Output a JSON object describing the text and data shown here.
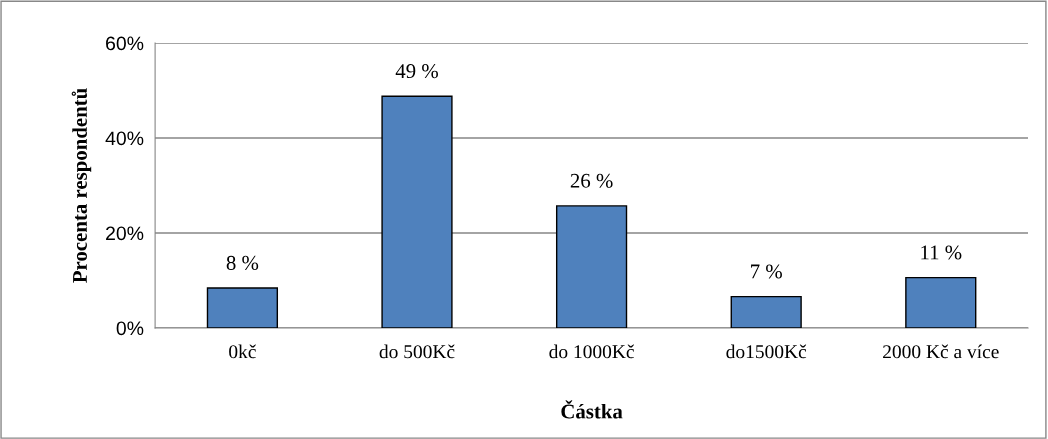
{
  "chart_data": {
    "type": "bar",
    "categories": [
      "0kč",
      "do 500Kč",
      "do 1000Kč",
      "do1500Kč",
      "2000 Kč a více"
    ],
    "values": [
      8.4,
      48.8,
      25.7,
      6.6,
      10.6
    ],
    "value_labels": [
      "8 %",
      "49 %",
      "26 %",
      "7 %",
      "11 %"
    ],
    "color": "#4f81bd",
    "xlabel": "Částka",
    "ylabel": "Procenta respondentů",
    "ylim": [
      0,
      60
    ],
    "yticks": [
      {
        "value": 0,
        "label": "0%"
      },
      {
        "value": 20,
        "label": "20%"
      },
      {
        "value": 40,
        "label": "40%"
      },
      {
        "value": 60,
        "label": "60%"
      }
    ],
    "grid": "y",
    "legend": false
  }
}
